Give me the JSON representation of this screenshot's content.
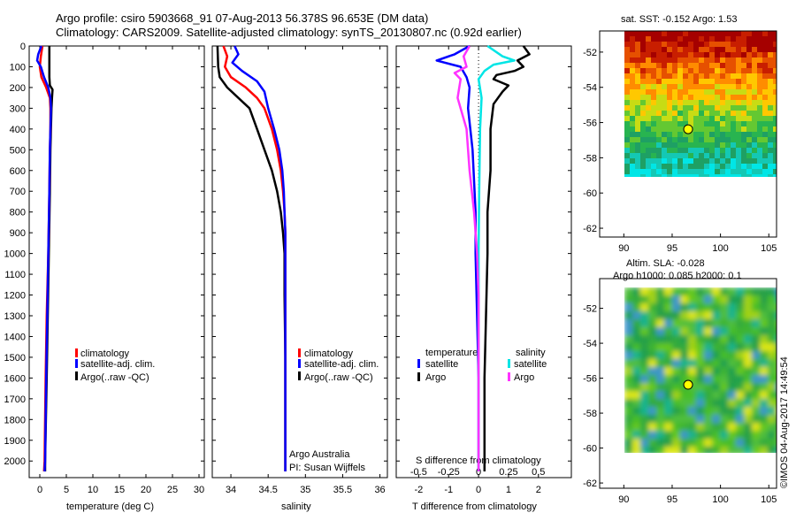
{
  "header": {
    "line1": "Argo profile: csiro 5903668_91 07-Aug-2013 56.378S 96.653E (DM data)",
    "line2": "Climatology: CARS2009. Satellite-adjusted climatology: synTS_20130807.nc (0.92d earlier)"
  },
  "colors": {
    "climatology": "#ff0000",
    "satellite_adj": "#0000ff",
    "argo": "#000000",
    "salinity_satellite": "#00e5e5",
    "salinity_argo": "#ff33ff"
  },
  "legend": {
    "climatology": "climatology",
    "satellite_adj": "satellite-adj. clim.",
    "argo": "Argo(..raw -QC)",
    "temperature_head": "temperature",
    "salinity_head": "salinity",
    "satellite": "satellite",
    "argo_short": "Argo"
  },
  "credits": {
    "line1": "Argo Australia",
    "line2": "PI: Susan Wijffels",
    "stamp": "©IMOS 04-Aug-2017 14:49:54"
  },
  "maps": {
    "sst_title": "sat. SST: -0.152 Argo: 1.53",
    "sla_title1": "Altim. SLA: -0.028",
    "sla_title2": "Argo h1000: 0.085 h2000: 0.1",
    "float_position": {
      "lon": 96.653,
      "lat": -56.378
    }
  },
  "chart_data": [
    {
      "type": "line",
      "xlabel": "temperature (deg C)",
      "ylabel": "",
      "xlim": [
        -2,
        31
      ],
      "ylim": [
        2080,
        0
      ],
      "xticks": [
        0,
        5,
        10,
        15,
        20,
        25,
        30
      ],
      "yticks": [
        0,
        100,
        200,
        300,
        400,
        500,
        600,
        700,
        800,
        900,
        1000,
        1100,
        1200,
        1300,
        1400,
        1500,
        1600,
        1700,
        1800,
        1900,
        2000
      ],
      "series": [
        {
          "name": "Argo(..raw -QC)",
          "color": "#000000",
          "points": [
            [
              1.8,
              0
            ],
            [
              1.8,
              50
            ],
            [
              1.8,
              100
            ],
            [
              1.8,
              150
            ],
            [
              1.9,
              190
            ],
            [
              2.4,
              210
            ],
            [
              2.3,
              250
            ],
            [
              2.2,
              300
            ],
            [
              2.1,
              400
            ],
            [
              2.0,
              500
            ],
            [
              1.9,
              700
            ],
            [
              1.7,
              1000
            ],
            [
              1.5,
              1300
            ],
            [
              1.3,
              1600
            ],
            [
              1.0,
              2000
            ],
            [
              1.0,
              2050
            ]
          ]
        },
        {
          "name": "climatology",
          "color": "#ff0000",
          "points": [
            [
              0.5,
              0
            ],
            [
              0.2,
              50
            ],
            [
              0.0,
              100
            ],
            [
              0.3,
              150
            ],
            [
              1.2,
              200
            ],
            [
              1.9,
              250
            ],
            [
              2.0,
              300
            ],
            [
              2.0,
              400
            ],
            [
              1.9,
              500
            ],
            [
              1.8,
              700
            ],
            [
              1.6,
              1000
            ],
            [
              1.3,
              1300
            ],
            [
              1.1,
              1600
            ],
            [
              0.9,
              2000
            ],
            [
              0.8,
              2050
            ]
          ]
        },
        {
          "name": "satellite-adj. clim.",
          "color": "#0000ff",
          "points": [
            [
              0.3,
              0
            ],
            [
              -0.3,
              40
            ],
            [
              -0.5,
              70
            ],
            [
              0.2,
              100
            ],
            [
              0.8,
              150
            ],
            [
              1.6,
              200
            ],
            [
              2.0,
              250
            ],
            [
              2.1,
              300
            ],
            [
              2.0,
              400
            ],
            [
              1.9,
              500
            ],
            [
              1.8,
              700
            ],
            [
              1.6,
              1000
            ],
            [
              1.4,
              1300
            ],
            [
              1.2,
              1600
            ],
            [
              1.0,
              2000
            ],
            [
              0.9,
              2050
            ]
          ]
        }
      ]
    },
    {
      "type": "line",
      "xlabel": "salinity",
      "ylabel": "",
      "xlim": [
        33.75,
        36.1
      ],
      "ylim": [
        2080,
        0
      ],
      "xticks": [
        34,
        34.5,
        35,
        35.5,
        36
      ],
      "yticks": [
        0,
        100,
        200,
        300,
        400,
        500,
        600,
        700,
        800,
        900,
        1000,
        1100,
        1200,
        1300,
        1400,
        1500,
        1600,
        1700,
        1800,
        1900,
        2000
      ],
      "series": [
        {
          "name": "Argo(..raw -QC)",
          "color": "#000000",
          "points": [
            [
              33.82,
              0
            ],
            [
              33.83,
              100
            ],
            [
              33.85,
              150
            ],
            [
              33.95,
              200
            ],
            [
              34.1,
              250
            ],
            [
              34.25,
              300
            ],
            [
              34.35,
              400
            ],
            [
              34.45,
              500
            ],
            [
              34.55,
              600
            ],
            [
              34.62,
              700
            ],
            [
              34.67,
              800
            ],
            [
              34.7,
              900
            ],
            [
              34.72,
              1000
            ],
            [
              34.72,
              1200
            ],
            [
              34.73,
              1500
            ],
            [
              34.73,
              2000
            ],
            [
              34.73,
              2050
            ]
          ]
        },
        {
          "name": "climatology",
          "color": "#ff0000",
          "points": [
            [
              33.9,
              0
            ],
            [
              33.95,
              50
            ],
            [
              33.92,
              100
            ],
            [
              34.0,
              150
            ],
            [
              34.2,
              200
            ],
            [
              34.35,
              250
            ],
            [
              34.45,
              300
            ],
            [
              34.55,
              400
            ],
            [
              34.62,
              500
            ],
            [
              34.67,
              600
            ],
            [
              34.7,
              700
            ],
            [
              34.72,
              800
            ],
            [
              34.73,
              900
            ],
            [
              34.73,
              1000
            ],
            [
              34.73,
              1500
            ],
            [
              34.73,
              2000
            ],
            [
              34.73,
              2050
            ]
          ]
        },
        {
          "name": "satellite-adj. clim.",
          "color": "#0000ff",
          "points": [
            [
              34.05,
              0
            ],
            [
              34.1,
              40
            ],
            [
              34.02,
              80
            ],
            [
              34.15,
              120
            ],
            [
              34.35,
              170
            ],
            [
              34.45,
              220
            ],
            [
              34.5,
              300
            ],
            [
              34.58,
              400
            ],
            [
              34.65,
              500
            ],
            [
              34.69,
              600
            ],
            [
              34.71,
              700
            ],
            [
              34.72,
              800
            ],
            [
              34.73,
              900
            ],
            [
              34.73,
              1000
            ],
            [
              34.73,
              1500
            ],
            [
              34.73,
              2000
            ],
            [
              34.73,
              2050
            ]
          ]
        }
      ]
    },
    {
      "type": "line",
      "xlabel": "T difference from climatology",
      "ylabel": "S difference from climatology",
      "xlim": [
        -2.75,
        3.1
      ],
      "ylim": [
        2080,
        0
      ],
      "xticks": [
        -2,
        -1,
        0,
        1,
        2
      ],
      "xticks_salinity": [
        -0.5,
        -0.25,
        0,
        0.25,
        0.5
      ],
      "yticks": [
        0,
        100,
        200,
        300,
        400,
        500,
        600,
        700,
        800,
        900,
        1000,
        1100,
        1200,
        1300,
        1400,
        1500,
        1600,
        1700,
        1800,
        1900,
        2000
      ],
      "series": [
        {
          "name": "temperature satellite",
          "color": "#0000ff",
          "points": [
            [
              -0.3,
              0
            ],
            [
              -0.8,
              40
            ],
            [
              -1.4,
              70
            ],
            [
              -0.6,
              100
            ],
            [
              -0.4,
              150
            ],
            [
              -0.3,
              200
            ],
            [
              -0.35,
              300
            ],
            [
              -0.2,
              500
            ],
            [
              -0.1,
              800
            ],
            [
              -0.1,
              1000
            ],
            [
              -0.05,
              1300
            ],
            [
              0.0,
              1600
            ],
            [
              0.0,
              2050
            ]
          ]
        },
        {
          "name": "temperature Argo",
          "color": "#000000",
          "points": [
            [
              1.5,
              0
            ],
            [
              1.7,
              40
            ],
            [
              1.3,
              70
            ],
            [
              1.5,
              100
            ],
            [
              1.2,
              120
            ],
            [
              0.6,
              140
            ],
            [
              0.5,
              160
            ],
            [
              1.0,
              190
            ],
            [
              0.8,
              220
            ],
            [
              0.5,
              280
            ],
            [
              0.4,
              400
            ],
            [
              0.4,
              600
            ],
            [
              0.3,
              800
            ],
            [
              0.3,
              1000
            ],
            [
              0.25,
              1300
            ],
            [
              0.2,
              1600
            ],
            [
              0.2,
              2050
            ]
          ]
        },
        {
          "name": "salinity satellite",
          "color": "#00e5e5",
          "points": [
            [
              0.3,
              0
            ],
            [
              0.8,
              50
            ],
            [
              1.2,
              70
            ],
            [
              0.5,
              90
            ],
            [
              0.2,
              120
            ],
            [
              0.0,
              160
            ],
            [
              0.1,
              250
            ],
            [
              0.05,
              400
            ],
            [
              0.02,
              700
            ],
            [
              0.0,
              1000
            ],
            [
              0.0,
              1500
            ],
            [
              0.0,
              2050
            ]
          ]
        },
        {
          "name": "salinity Argo",
          "color": "#ff33ff",
          "points": [
            [
              -0.3,
              0
            ],
            [
              -0.5,
              50
            ],
            [
              -0.4,
              100
            ],
            [
              -0.8,
              130
            ],
            [
              -0.6,
              160
            ],
            [
              -0.7,
              250
            ],
            [
              -0.4,
              400
            ],
            [
              -0.3,
              600
            ],
            [
              -0.15,
              800
            ],
            [
              -0.05,
              1000
            ],
            [
              0.0,
              1200
            ],
            [
              0.0,
              2050
            ]
          ]
        }
      ]
    }
  ],
  "map_axes": {
    "lon_ticks": [
      90,
      95,
      100,
      105
    ],
    "lat_ticks": [
      -52,
      -54,
      -56,
      -58,
      -60,
      -62
    ]
  }
}
